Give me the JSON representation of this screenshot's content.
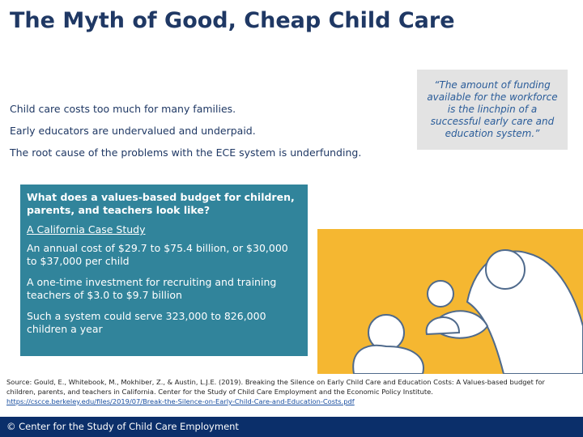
{
  "title": "The Myth of Good, Cheap Child Care",
  "points": [
    "Child care costs too much for many families.",
    "Early educators are undervalued and underpaid.",
    "The root cause of the problems with the ECE system is underfunding."
  ],
  "quote": "“The amount of funding available for the workforce is the linchpin of a successful early care and education system.”",
  "callout": {
    "question": "What does a values-based budget for children, parents, and teachers look like?",
    "link": "A California Case Study",
    "items": [
      "An annual cost of $29.7 to $75.4 billion, or $30,000 to $37,000 per child",
      "A one-time investment for recruiting and training teachers of $3.0 to $9.7 billion",
      "Such a system could serve 323,000 to 826,000 children a year"
    ]
  },
  "source": {
    "text": "Source: Gould, E., Whitebook, M., Mokhiber, Z., & Austin, L.J.E. (2019). Breaking the Silence on Early Child Care and Education Costs: A Values-based budget for children, parents, and teachers in California.  Center for the Study of Child Care Employment and the Economic Policy Institute.",
    "url": "https://cscce.berkeley.edu/files/2019/07/Break-the-Silence-on-Early-Child-Care-and-Education-Costs.pdf"
  },
  "footer": "© Center for the Study of Child Care Employment"
}
